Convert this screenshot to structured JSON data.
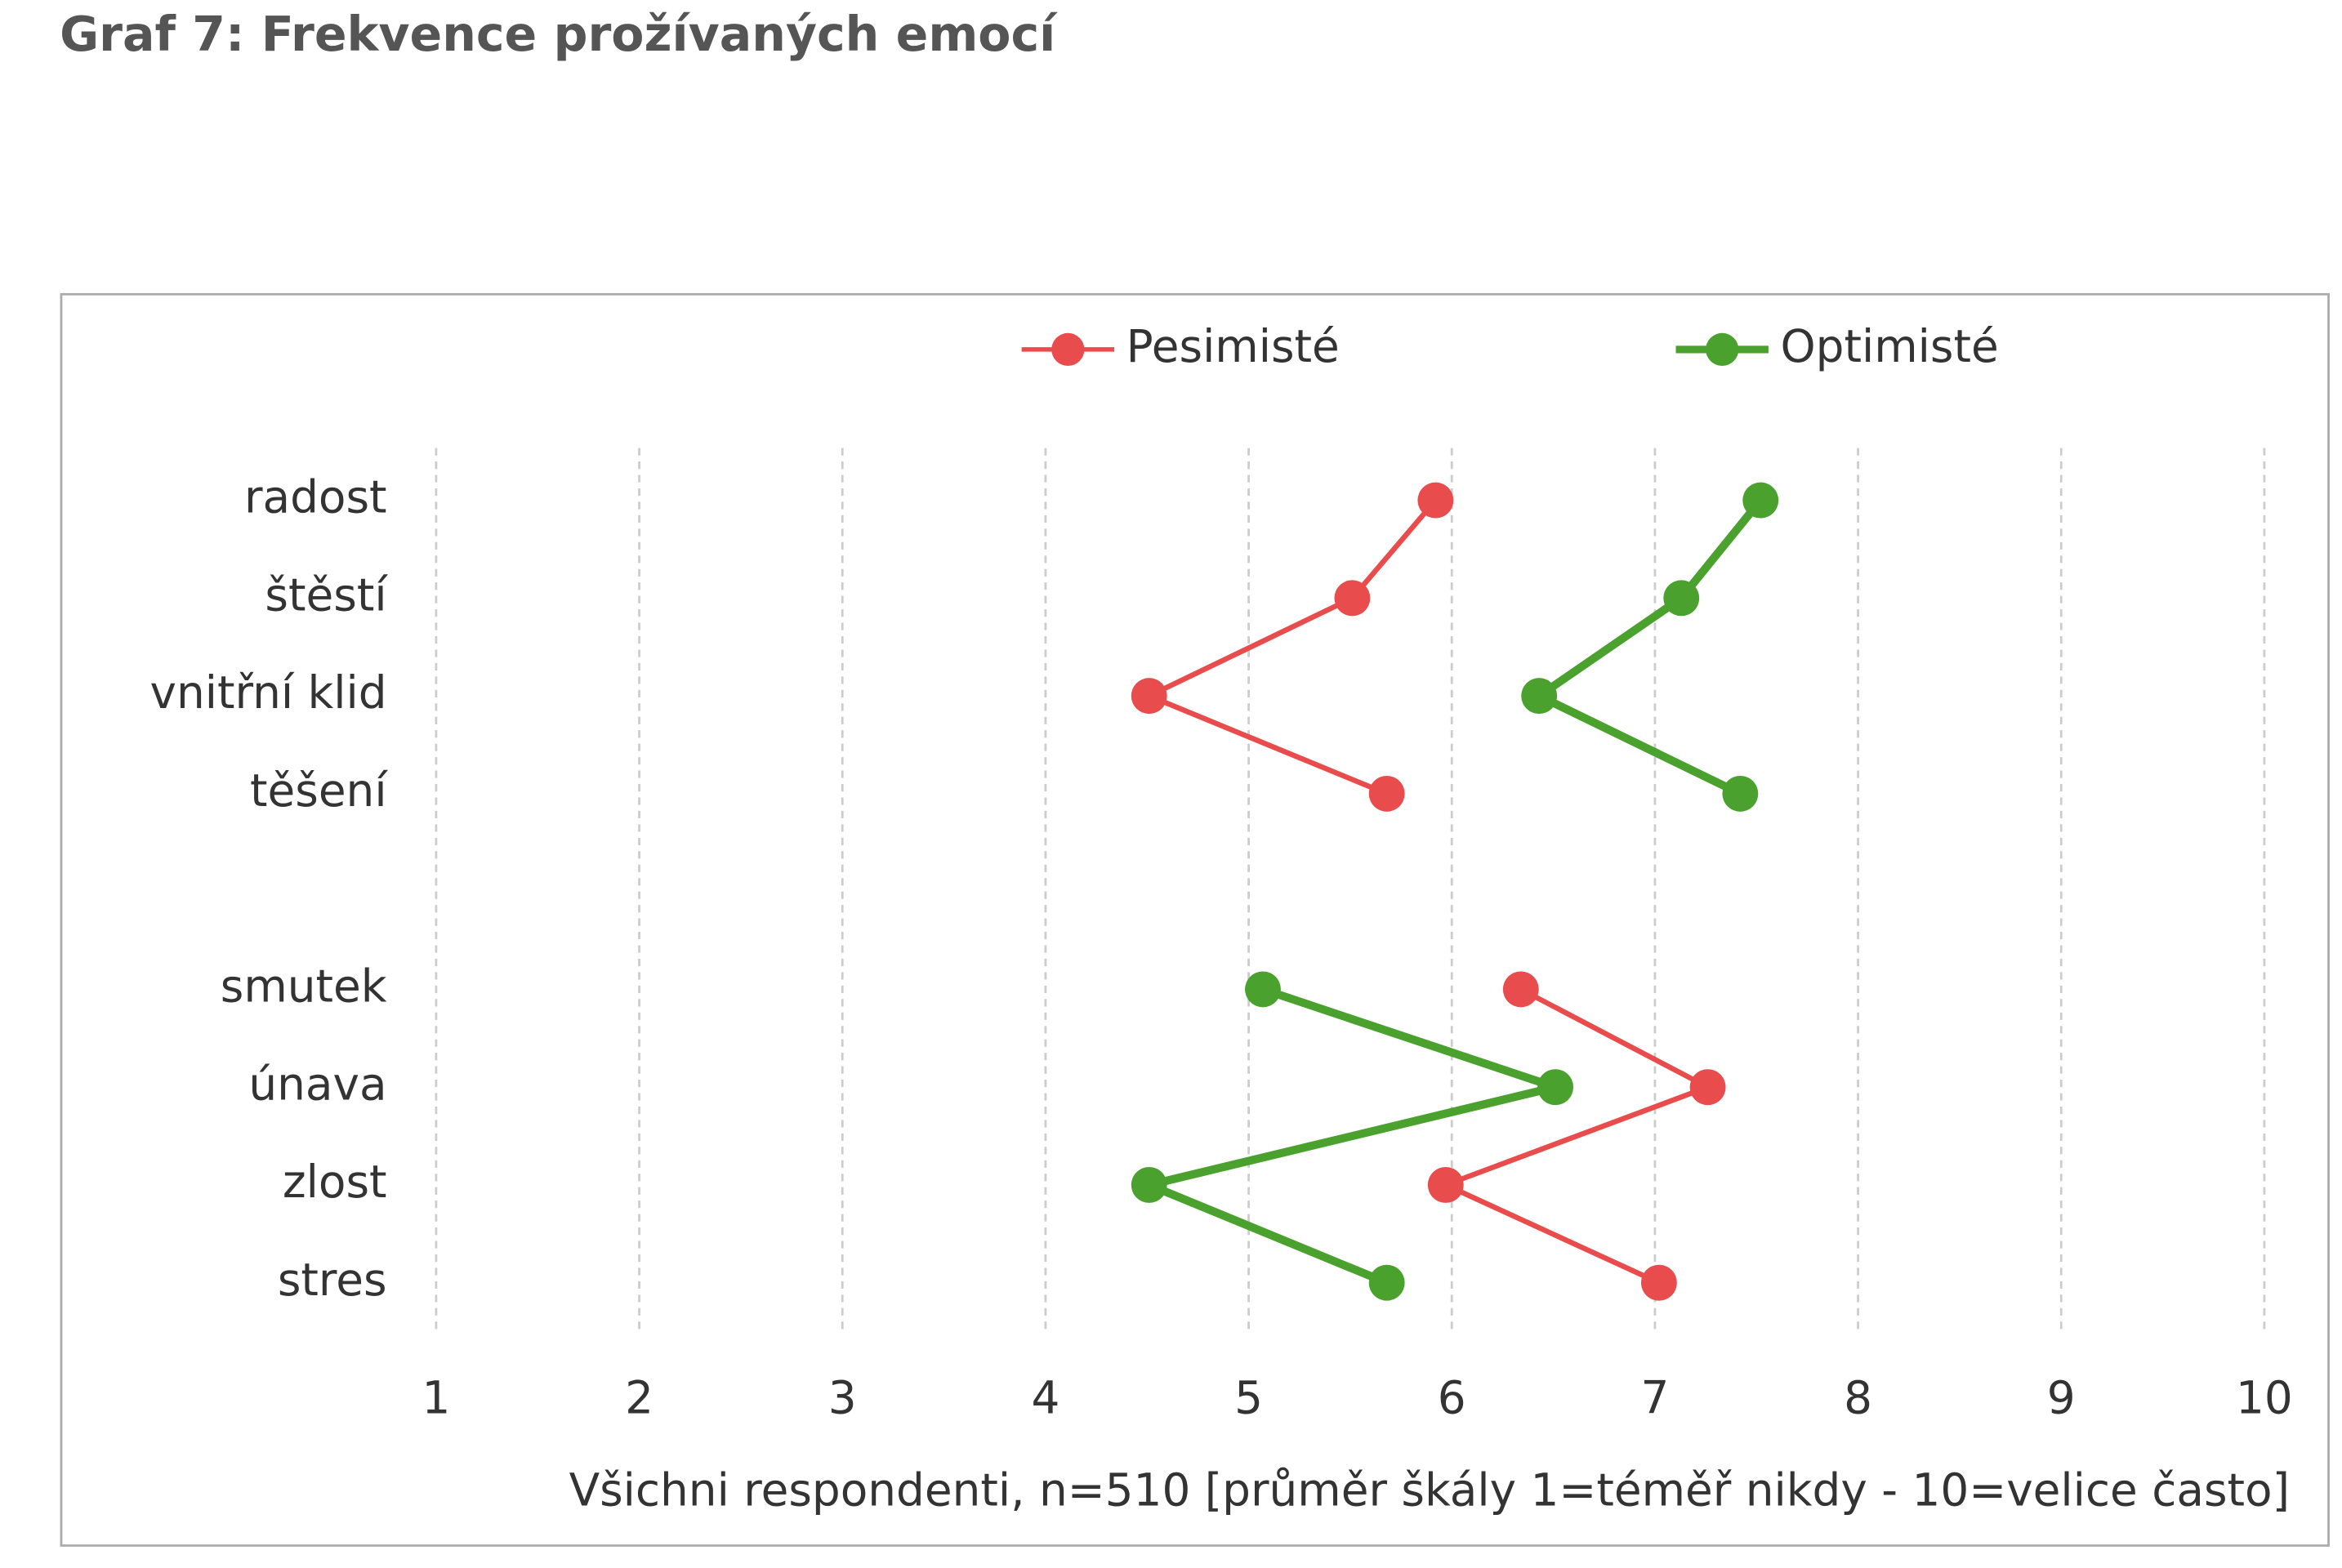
{
  "chart_data": {
    "type": "line",
    "title": "Graf 7: Frekvence prožívaných emocí",
    "x_label": "Všichni respondenti, n=510 [průměr škály 1=téměř nikdy - 10=velice často]",
    "categories": [
      "radost",
      "štěstí",
      "vnitřní klid",
      "těšení",
      null,
      "smutek",
      "únava",
      "zlost",
      "stres"
    ],
    "series": [
      {
        "name": "Pesimisté",
        "color": "#e84c4c",
        "values": [
          5.92,
          5.51,
          4.51,
          5.68,
          null,
          6.34,
          7.26,
          5.97,
          7.02
        ]
      },
      {
        "name": "Optimisté",
        "color": "#4aa12e",
        "values": [
          7.52,
          7.13,
          6.43,
          7.42,
          null,
          5.07,
          6.51,
          4.51,
          5.68
        ]
      }
    ],
    "xlim": [
      1,
      10
    ],
    "xticks": [
      1,
      2,
      3,
      4,
      5,
      6,
      7,
      8,
      9,
      10
    ],
    "grid": true,
    "legend": "top"
  }
}
